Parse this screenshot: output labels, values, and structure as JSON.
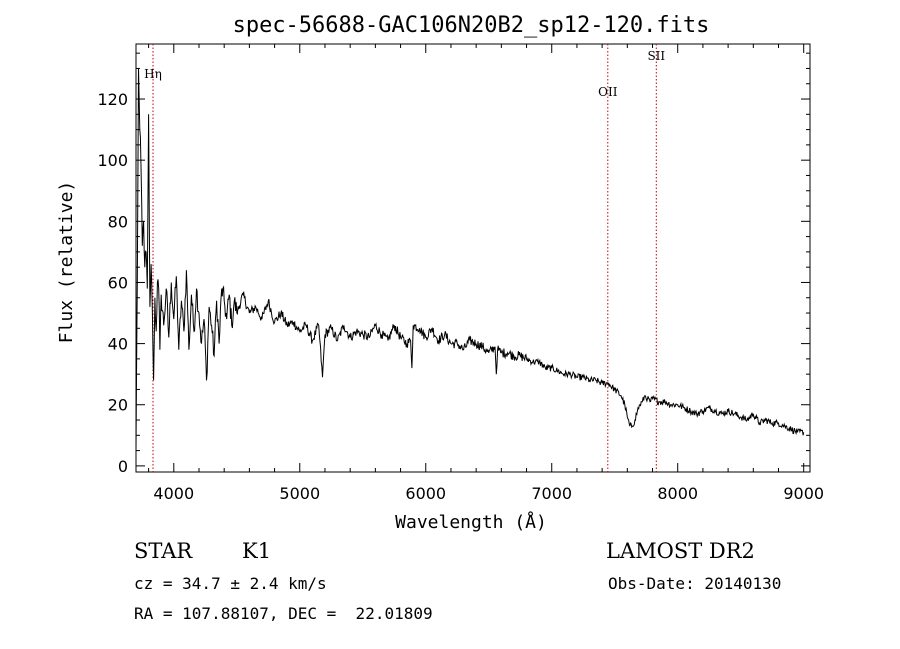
{
  "chart_data": {
    "type": "line",
    "title": "spec-56688-GAC106N20B2_sp12-120.fits",
    "xlabel": "Wavelength (Å)",
    "ylabel": "Flux (relative)",
    "xlim": [
      3700,
      9050
    ],
    "ylim": [
      -2,
      138
    ],
    "x_ticks": [
      4000,
      5000,
      6000,
      7000,
      8000,
      9000
    ],
    "y_ticks": [
      0,
      20,
      40,
      60,
      80,
      100,
      120
    ],
    "grid": false,
    "line_color": "#000000",
    "marker_color": "#cc0000",
    "lines": [
      {
        "label": "Hη",
        "wavelength": 3835
      },
      {
        "label": "OII",
        "wavelength": 7445
      },
      {
        "label": "SII",
        "wavelength": 7830
      }
    ],
    "series": [
      {
        "x": [
          3700,
          3710,
          3720,
          3730,
          3740,
          3750,
          3760,
          3770,
          3780,
          3790,
          3800,
          3810,
          3820,
          3830,
          3840,
          3850,
          3860,
          3870,
          3880,
          3890,
          3900,
          3920,
          3940,
          3960,
          3980,
          4000,
          4020,
          4040,
          4060,
          4080,
          4100,
          4120,
          4140,
          4160,
          4180,
          4200,
          4220,
          4240,
          4260,
          4280,
          4300,
          4320,
          4340,
          4360,
          4380,
          4400,
          4420,
          4440,
          4460,
          4480,
          4500,
          4550,
          4600,
          4650,
          4700,
          4750,
          4800,
          4850,
          4900,
          4950,
          5000,
          5050,
          5100,
          5150,
          5180,
          5200,
          5250,
          5300,
          5350,
          5400,
          5450,
          5500,
          5550,
          5600,
          5650,
          5700,
          5750,
          5800,
          5850,
          5880,
          5890,
          5900,
          5950,
          6000,
          6050,
          6100,
          6150,
          6200,
          6250,
          6300,
          6350,
          6400,
          6450,
          6500,
          6550,
          6560,
          6570,
          6600,
          6650,
          6700,
          6750,
          6800,
          6850,
          6900,
          6950,
          7000,
          7050,
          7100,
          7150,
          7200,
          7250,
          7300,
          7350,
          7400,
          7450,
          7500,
          7550,
          7580,
          7600,
          7620,
          7640,
          7660,
          7680,
          7700,
          7720,
          7740,
          7760,
          7780,
          7800,
          7850,
          7900,
          7950,
          8000,
          8050,
          8100,
          8150,
          8200,
          8250,
          8300,
          8350,
          8400,
          8450,
          8500,
          8550,
          8600,
          8650,
          8700,
          8750,
          8800,
          8850,
          8900,
          8950,
          9000
        ],
        "y": [
          5,
          60,
          130,
          110,
          98,
          72,
          80,
          65,
          70,
          58,
          115,
          52,
          66,
          50,
          28,
          55,
          44,
          60,
          58,
          38,
          56,
          46,
          58,
          42,
          60,
          48,
          62,
          38,
          54,
          44,
          64,
          38,
          56,
          44,
          58,
          50,
          40,
          48,
          28,
          52,
          46,
          36,
          54,
          40,
          58,
          54,
          48,
          56,
          46,
          54,
          50,
          56,
          50,
          52,
          48,
          54,
          47,
          50,
          46,
          47,
          44,
          46,
          41,
          46,
          29,
          43,
          45,
          41,
          46,
          42,
          44,
          43,
          42,
          46,
          43,
          41,
          46,
          42,
          40,
          41,
          32,
          46,
          45,
          42,
          45,
          41,
          43,
          40,
          40,
          38,
          41,
          40,
          39,
          37,
          39,
          30,
          38,
          37,
          37,
          36,
          36,
          35,
          34,
          34,
          32,
          32,
          31,
          30,
          30,
          29,
          29,
          28,
          28,
          27,
          27,
          25,
          23,
          20,
          16,
          13,
          13,
          15,
          18,
          20,
          21,
          23,
          22,
          21,
          22,
          21,
          21,
          20,
          20,
          19,
          18,
          17,
          18,
          19,
          18,
          17,
          18,
          17,
          16,
          15,
          17,
          14,
          15,
          14,
          14,
          13,
          12,
          11,
          11
        ]
      }
    ]
  },
  "info": {
    "object_class": "STAR",
    "subclass": "K1",
    "survey": "LAMOST DR2",
    "cz": "cz = 34.7 ± 2.4 km/s",
    "obs_date": "Obs-Date: 20140130",
    "radec": "RA = 107.88107, DEC =  22.01809"
  }
}
